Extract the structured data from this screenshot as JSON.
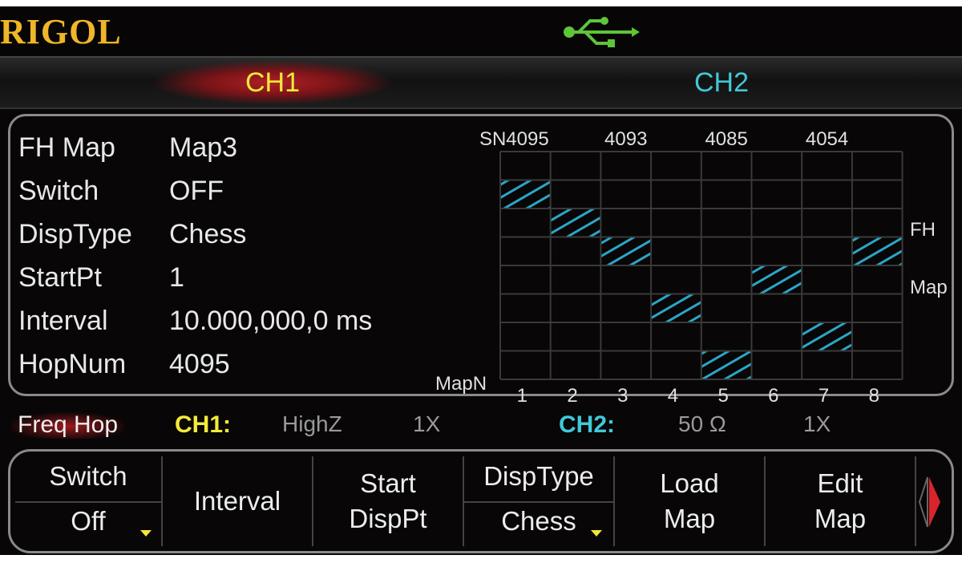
{
  "brand": {
    "logo": "RIGOL",
    "usb_icon": "usb-icon",
    "usb_color": "#5ec43a"
  },
  "tabs": [
    {
      "label": "CH1",
      "color": "#f3ea3a",
      "active": true
    },
    {
      "label": "CH2",
      "color": "#41c8d8",
      "active": false
    }
  ],
  "params": [
    {
      "label": "FH Map",
      "value": "Map3"
    },
    {
      "label": "Switch",
      "value": "OFF"
    },
    {
      "label": "DispType",
      "value": "Chess"
    },
    {
      "label": "StartPt",
      "value": "1"
    },
    {
      "label": "Interval",
      "value": "10.000,000,0 ms"
    },
    {
      "label": "HopNum",
      "value": "4095"
    }
  ],
  "chart_data": {
    "type": "heatmap",
    "top_labels": [
      "SN4095",
      "4093",
      "4085",
      "4054"
    ],
    "top_label_columns": [
      1,
      3,
      5,
      7
    ],
    "x_title": "MapN",
    "x_ticks": [
      "1",
      "2",
      "3",
      "4",
      "5",
      "6",
      "7",
      "8"
    ],
    "side_labels": [
      "FH",
      "Map"
    ],
    "rows": 8,
    "columns": 8,
    "hatched_row_per_column": [
      2,
      3,
      4,
      6,
      8,
      5,
      7,
      4
    ],
    "hatch_color": "#2aa6c8"
  },
  "status": {
    "mode": "Freq Hop",
    "ch1_label": "CH1:",
    "ch1_imp": "HighZ",
    "ch1_mult": "1X",
    "ch2_label": "CH2:",
    "ch2_imp": "50 Ω",
    "ch2_mult": "1X"
  },
  "softkeys": [
    {
      "top": "Switch",
      "bottom": "Off",
      "dropdown": true
    },
    {
      "label": "Interval"
    },
    {
      "label1": "Start",
      "label2": "DispPt"
    },
    {
      "top": "DispType",
      "bottom": "Chess",
      "dropdown": true
    },
    {
      "label1": "Load",
      "label2": "Map"
    },
    {
      "label1": "Edit",
      "label2": "Map"
    }
  ],
  "page_arrow_icon": "page-right-arrow-icon"
}
